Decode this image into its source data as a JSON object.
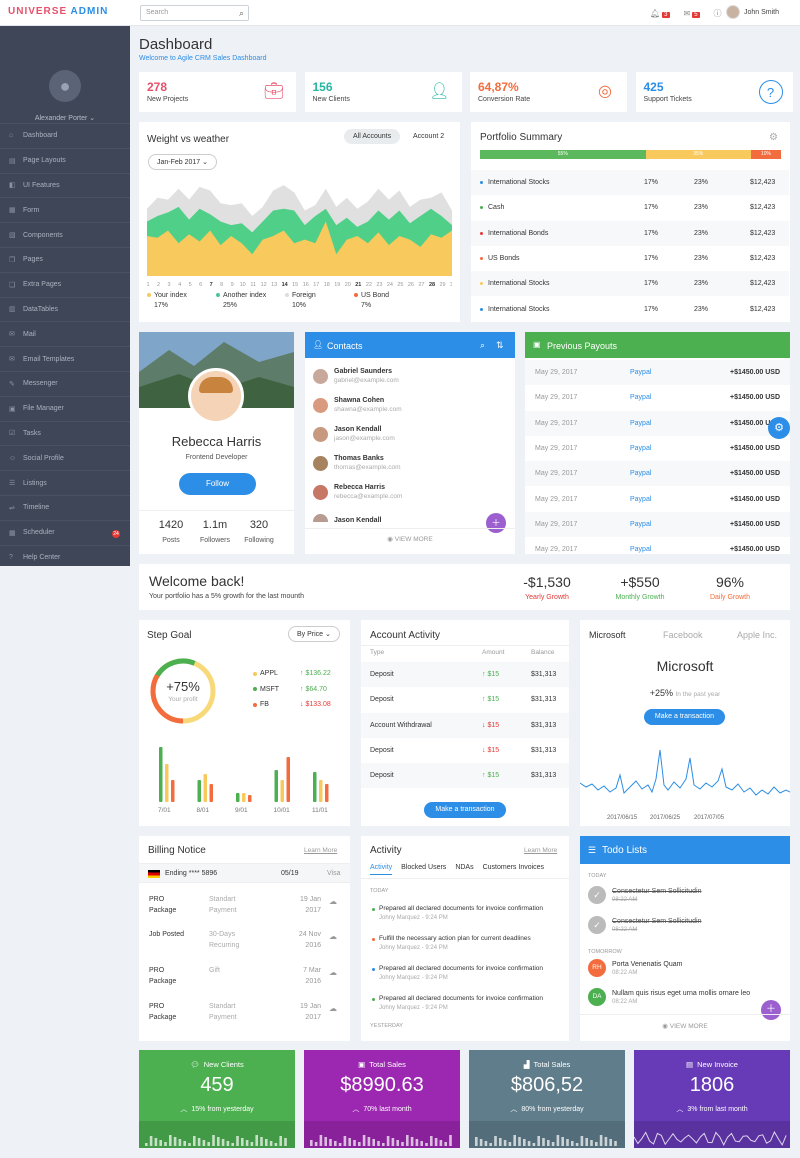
{
  "topbar": {
    "brand_part1": "UNIVERSE",
    "brand_part2": "ADMIN",
    "search_placeholder": "Search",
    "notif_count": "3",
    "mail_count": "5",
    "user_name": "John Smith"
  },
  "sidebar": {
    "user_name": "Alexander Porter",
    "items": [
      {
        "label": "Dashboard",
        "icon": "home-icon"
      },
      {
        "label": "Page Layouts",
        "icon": "layout-icon"
      },
      {
        "label": "UI Features",
        "icon": "ui-icon"
      },
      {
        "label": "Form",
        "icon": "form-icon"
      },
      {
        "label": "Components",
        "icon": "components-icon"
      },
      {
        "label": "Pages",
        "icon": "pages-icon"
      },
      {
        "label": "Extra Pages",
        "icon": "extra-pages-icon"
      },
      {
        "label": "DataTables",
        "icon": "table-icon"
      },
      {
        "label": "Mail",
        "icon": "mail-icon"
      },
      {
        "label": "Email Templates",
        "icon": "email-template-icon"
      },
      {
        "label": "Messenger",
        "icon": "messenger-icon"
      },
      {
        "label": "File Manager",
        "icon": "file-manager-icon"
      },
      {
        "label": "Tasks",
        "icon": "tasks-icon"
      },
      {
        "label": "Social Profile",
        "icon": "social-icon"
      },
      {
        "label": "Listings",
        "icon": "listings-icon"
      },
      {
        "label": "Timeline",
        "icon": "timeline-icon"
      },
      {
        "label": "Scheduler",
        "icon": "scheduler-icon",
        "badge": "24"
      },
      {
        "label": "Help Center",
        "icon": "help-icon"
      }
    ]
  },
  "page": {
    "title": "Dashboard",
    "subtitle": "Welcome to Agile CRM Sales Dashboard"
  },
  "stats": [
    {
      "value": "278",
      "label": "New Projects",
      "color": "#e8506b",
      "icon": "briefcase-icon"
    },
    {
      "value": "156",
      "label": "New Clients",
      "color": "#26b5a0",
      "icon": "user-icon"
    },
    {
      "value": "64,87%",
      "label": "Conversion Rate",
      "color": "#f36c3d",
      "icon": "target-icon"
    },
    {
      "value": "425",
      "label": "Support Tickets",
      "color": "#2c8ee6",
      "icon": "question-icon"
    }
  ],
  "weather": {
    "title": "Weight vs weather",
    "tab_all": "All Accounts",
    "tab_account2": "Account 2",
    "date_filter": "Jan-Feb 2017",
    "legend": [
      {
        "name": "Your index",
        "value": "17%",
        "color": "#f8c95c"
      },
      {
        "name": "Another index",
        "value": "25%",
        "color": "#4fc3a1"
      },
      {
        "name": "Foreign",
        "value": "10%",
        "color": "#dddddd"
      },
      {
        "name": "US Bond",
        "value": "7%",
        "color": "#f36c3d"
      }
    ]
  },
  "chart_data": {
    "type": "area",
    "x": [
      "1",
      "2",
      "3",
      "4",
      "5",
      "6",
      "7",
      "8",
      "9",
      "10",
      "11",
      "12",
      "13",
      "14",
      "15",
      "16",
      "17",
      "18",
      "19",
      "20",
      "21",
      "22",
      "23",
      "24",
      "25",
      "26",
      "27",
      "28",
      "29",
      "30"
    ],
    "series": [
      {
        "name": "Foreign",
        "values": [
          37,
          43,
          42,
          48,
          42,
          49,
          47,
          40,
          39,
          40,
          33,
          38,
          47,
          50,
          46,
          36,
          39,
          48,
          38,
          43,
          37,
          41,
          48,
          42,
          47,
          38,
          42,
          43,
          46,
          36
        ]
      },
      {
        "name": "Another index",
        "values": [
          30,
          33,
          35,
          38,
          31,
          37,
          34,
          30,
          28,
          29,
          24,
          30,
          36,
          37,
          36,
          28,
          33,
          37,
          28,
          32,
          27,
          30,
          36,
          31,
          36,
          29,
          33,
          37,
          33,
          28
        ]
      },
      {
        "name": "Your index",
        "values": [
          22,
          21,
          25,
          18,
          23,
          19,
          25,
          17,
          22,
          18,
          12,
          20,
          22,
          25,
          18,
          20,
          18,
          30,
          12,
          20,
          22,
          18,
          24,
          17,
          22,
          20,
          16,
          23,
          21,
          25
        ]
      }
    ]
  },
  "portfolio": {
    "title": "Portfolio Summary",
    "bar": [
      {
        "label": "55%",
        "value": 55,
        "color": "#5cb85c"
      },
      {
        "label": "35%",
        "value": 35,
        "color": "#f8c95c"
      },
      {
        "label": "10%",
        "value": 10,
        "color": "#f36c3d"
      }
    ],
    "rows": [
      {
        "name": "International Stocks",
        "c1": "17%",
        "c2": "23%",
        "c3": "$12,423",
        "dot": "#2c8ee6"
      },
      {
        "name": "Cash",
        "c1": "17%",
        "c2": "23%",
        "c3": "$12,423",
        "dot": "#4caf50"
      },
      {
        "name": "International Bonds",
        "c1": "17%",
        "c2": "23%",
        "c3": "$12,423",
        "dot": "#e53935"
      },
      {
        "name": "US Bonds",
        "c1": "17%",
        "c2": "23%",
        "c3": "$12,423",
        "dot": "#f36c3d"
      },
      {
        "name": "International Stocks",
        "c1": "17%",
        "c2": "23%",
        "c3": "$12,423",
        "dot": "#f8c95c"
      },
      {
        "name": "International Stocks",
        "c1": "17%",
        "c2": "23%",
        "c3": "$12,423",
        "dot": "#2c8ee6"
      }
    ]
  },
  "profile": {
    "name": "Rebecca Harris",
    "role": "Frontend Developer",
    "follow_label": "Follow",
    "posts": "1420",
    "posts_label": "Posts",
    "followers": "1.1m",
    "followers_label": "Followers",
    "following": "320",
    "following_label": "Following"
  },
  "contacts": {
    "title": "Contacts",
    "view_more": "VIEW MORE",
    "items": [
      {
        "name": "Gabriel Saunders",
        "email": "gabriel@example.com"
      },
      {
        "name": "Shawna Cohen",
        "email": "shawna@example.com"
      },
      {
        "name": "Jason Kendall",
        "email": "jason@example.com"
      },
      {
        "name": "Thomas Banks",
        "email": "thomas@example.com"
      },
      {
        "name": "Rebecca Harris",
        "email": "rebecca@example.com"
      },
      {
        "name": "Jason Kendall",
        "email": ""
      }
    ]
  },
  "payouts": {
    "title": "Previous Payouts",
    "rows": [
      {
        "date": "May 29, 2017",
        "method": "Paypal",
        "amount": "+$1450.00 USD"
      },
      {
        "date": "May 29, 2017",
        "method": "Paypal",
        "amount": "+$1450.00 USD"
      },
      {
        "date": "May 29, 2017",
        "method": "Paypal",
        "amount": "+$1450.00 USD"
      },
      {
        "date": "May 29, 2017",
        "method": "Paypal",
        "amount": "+$1450.00 USD"
      },
      {
        "date": "May 29, 2017",
        "method": "Paypal",
        "amount": "+$1450.00 USD"
      },
      {
        "date": "May 29, 2017",
        "method": "Paypal",
        "amount": "+$1450.00 USD"
      },
      {
        "date": "May 29, 2017",
        "method": "Paypal",
        "amount": "+$1450.00 USD"
      },
      {
        "date": "May 29, 2017",
        "method": "Paypal",
        "amount": "+$1450.00 USD"
      }
    ]
  },
  "welcome": {
    "title": "Welcome back!",
    "subtitle": "Your portfolio has a 5% growth for the last mounth",
    "s1_value": "-$1,530",
    "s1_label": "Yearly Growth",
    "s2_value": "+$550",
    "s2_label": "Monthly Growth",
    "s3_value": "96%",
    "s3_label": "Daily Growth"
  },
  "step_goal": {
    "title": "Step Goal",
    "filter": "By Price",
    "center_value": "+75%",
    "center_label": "Your profit",
    "progress": 0.75,
    "tickers": [
      {
        "name": "APPL",
        "value": "$136.22",
        "dir": "up",
        "dot": "#f8c95c"
      },
      {
        "name": "MSFT",
        "value": "$64.70",
        "dir": "up",
        "dot": "#4caf50"
      },
      {
        "name": "FB",
        "value": "$133.08",
        "dir": "down",
        "dot": "#f36c3d"
      }
    ],
    "bar_labels": [
      "7/01",
      "8/01",
      "9/01",
      "10/01",
      "11/01"
    ],
    "bars": [
      [
        55,
        38,
        22
      ],
      [
        22,
        28,
        18
      ],
      [
        9,
        9,
        7
      ],
      [
        32,
        22,
        45
      ],
      [
        30,
        22,
        18
      ]
    ]
  },
  "account_activity": {
    "title": "Account Activity",
    "col_type": "Type",
    "col_amount": "Amount",
    "col_balance": "Balance",
    "rows": [
      {
        "type": "Deposit",
        "amount": "$15",
        "dir": "up",
        "balance": "$31,313"
      },
      {
        "type": "Deposit",
        "amount": "$15",
        "dir": "up",
        "balance": "$31,313"
      },
      {
        "type": "Account Withdrawal",
        "amount": "$15",
        "dir": "down",
        "balance": "$31,313"
      },
      {
        "type": "Deposit",
        "amount": "$15",
        "dir": "down",
        "balance": "$31,313"
      },
      {
        "type": "Deposit",
        "amount": "$15",
        "dir": "up",
        "balance": "$31,313"
      }
    ],
    "button": "Make a transaction"
  },
  "stocks": {
    "tabs": [
      "Microsoft",
      "Facebook",
      "Apple Inc."
    ],
    "name": "Microsoft",
    "change": "+25%",
    "change_label": "In the past year",
    "button": "Make a transaction",
    "dates": [
      "2017/06/15",
      "2017/06/25",
      "2017/07/05"
    ]
  },
  "billing": {
    "title": "Billing Notice",
    "learn_more": "Learn More",
    "card_label": "Ending **** 5896",
    "card_exp": "05/19",
    "card_type": "Visa",
    "rows": [
      {
        "item": "PRO Package",
        "desc": "Standart Payment",
        "date": "19 Jan 2017"
      },
      {
        "item": "Job Posted",
        "desc": "30-Days Recurring",
        "date": "24 Nov 2016"
      },
      {
        "item": "PRO Package",
        "desc": "Gift",
        "date": "7 Mar 2016"
      },
      {
        "item": "PRO Package",
        "desc": "Standart Payment",
        "date": "19 Jan 2017"
      }
    ]
  },
  "activity": {
    "title": "Activity",
    "learn_more": "Learn More",
    "tabs": [
      "Activity",
      "Blocked Users",
      "NDAs",
      "Customers Invoices"
    ],
    "today_label": "TODAY",
    "yesterday_label": "YESTERDAY",
    "items": [
      {
        "text": "Prepared all declared documents for invoice confirmation",
        "meta": "Johny Marquez - 9:24 PM",
        "dot": "#4caf50"
      },
      {
        "text": "Fulfill the necessary action plan for current deadlines",
        "meta": "Johny Marquez - 9:24 PM",
        "dot": "#f36c3d"
      },
      {
        "text": "Prepared all declared documents for invoice confirmation",
        "meta": "Johny Marquez - 9:24 PM",
        "dot": "#2c8ee6"
      },
      {
        "text": "Prepared all declared documents for invoice confirmation",
        "meta": "Johny Marquez - 9:24 PM",
        "dot": "#4caf50"
      }
    ]
  },
  "todo": {
    "title": "Todo Lists",
    "today_label": "TODAY",
    "tomorrow_label": "TOMORROW",
    "view_more": "VIEW MORE",
    "items": [
      {
        "text": "Consectetur Sem Sollicitudin",
        "time": "08:22 AM",
        "done": true,
        "initials": ""
      },
      {
        "text": "Consectetur Sem Sollicitudin",
        "time": "08:22 AM",
        "done": true,
        "initials": ""
      },
      {
        "text": "Porta Venenatis Quam",
        "time": "08:22 AM",
        "done": false,
        "initials": "RH"
      },
      {
        "text": "Nullam quis risus eget urna mollis ornare leo",
        "time": "08:22 AM",
        "done": false,
        "initials": "DA"
      }
    ]
  },
  "bottom_cards": [
    {
      "title": "New Clients",
      "value": "459",
      "sub": "15% from yesterday",
      "color": "#4caf50"
    },
    {
      "title": "Total Sales",
      "value": "$8990.63",
      "sub": "70% last month",
      "color": "#9c27b0"
    },
    {
      "title": "Total Sales",
      "value": "$806,52",
      "sub": "80% from yesterday",
      "color": "#607d8b"
    },
    {
      "title": "New Invoice",
      "value": "1806",
      "sub": "3% from last month",
      "color": "#673ab7"
    }
  ]
}
